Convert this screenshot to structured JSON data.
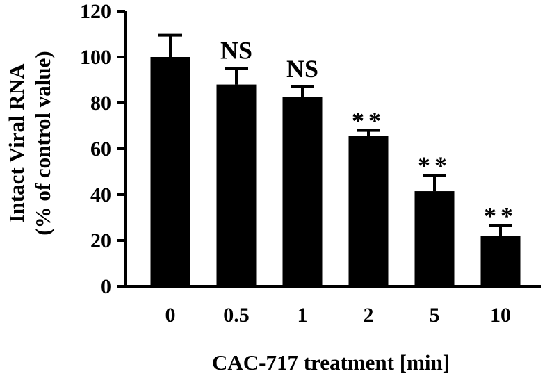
{
  "chart_data": {
    "type": "bar",
    "categories": [
      "0",
      "0.5",
      "1",
      "2",
      "5",
      "10"
    ],
    "values": [
      100,
      88,
      82.5,
      65.5,
      41.5,
      22
    ],
    "errors": [
      9.5,
      7,
      4.5,
      2.5,
      7,
      4.5
    ],
    "annotations": [
      "",
      "NS",
      "NS",
      "**",
      "**",
      "**"
    ],
    "xlabel": "CAC-717 treatment [min]",
    "ylabel_line1": "Intact Viral RNA",
    "ylabel_line2": "(% of control value)",
    "ylim": [
      0,
      120
    ],
    "yticks": [
      0,
      20,
      40,
      60,
      80,
      100,
      120
    ],
    "grid": false,
    "bar_color": "#000000"
  }
}
